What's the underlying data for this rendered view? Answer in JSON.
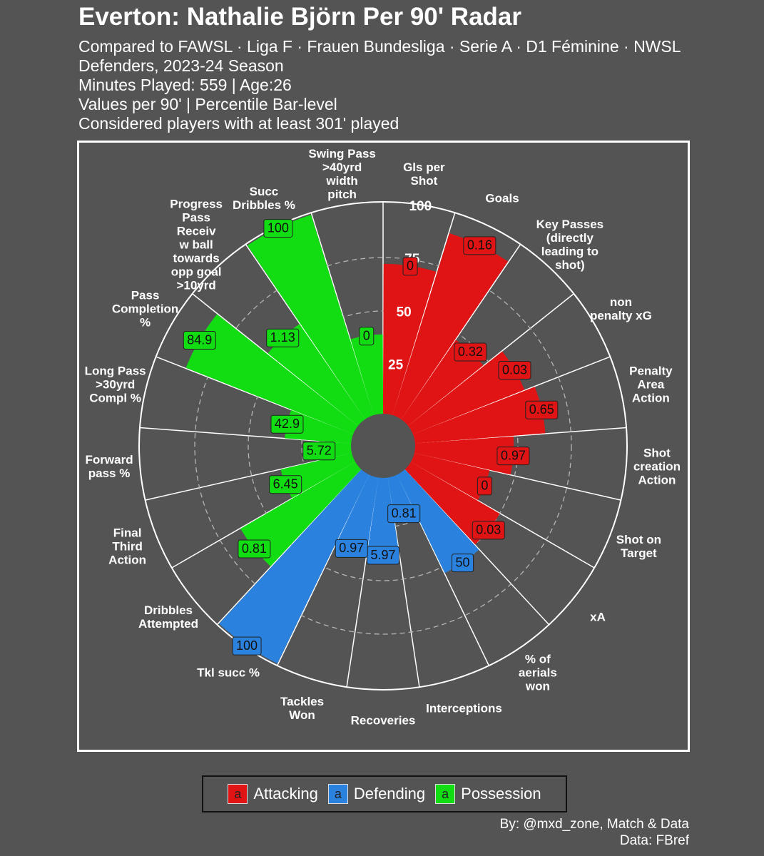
{
  "chart_data": {
    "type": "radar",
    "title": "Everton: Nathalie Björn Per 90' Radar",
    "subtitle": [
      "Compared to FAWSL · Liga F · Frauen Bundesliga · Serie A · D1 Féminine · NWSL",
      "Defenders, 2023-24 Season",
      "Minutes Played: 559 | Age:26",
      "Values per 90' | Percentile Bar-level",
      "Considered players with at least 301' played"
    ],
    "caption": [
      "By: @mxd_zone, Match & Data",
      "Data: FBref"
    ],
    "categories": [
      "Gls per\nShot",
      "Goals",
      "Key Passes\n(directly\nleading to\nshot)",
      "non\npenalty xG",
      "Penalty\nArea\nAction",
      "Shot\ncreation\nAction",
      "Shot on\nTarget",
      "xA",
      "% of\naerials\nwon",
      "Interceptions",
      "Recoveries",
      "Tackles\nWon",
      "Tkl succ %",
      "Dribbles\nAttempted",
      "Final\nThird\nAction",
      "Forward\npass %",
      "Long Pass\n>30yrd\nCompl %",
      "Pass\nCompletion\n%",
      "Progress\nPass\nReceiv\nw ball\ntowards\nopp goal\n>10yrd",
      "Succ\nDribbles %",
      "Swing Pass\n>40yrd\nwidth\npitch"
    ],
    "series": [
      {
        "name": "Attacking",
        "color": "#e01414",
        "values": [
          72,
          91,
          47,
          58,
          63,
          48,
          38,
          50,
          null,
          null,
          null,
          null,
          null,
          null,
          null,
          null,
          null,
          null,
          null,
          null,
          null
        ],
        "per90": [
          0,
          0.16,
          0.32,
          0.03,
          0.65,
          0.97,
          0,
          0.03,
          null,
          null,
          null,
          null,
          null,
          null,
          null,
          null,
          null,
          null,
          null,
          null,
          null
        ]
      },
      {
        "name": "Defending",
        "color": "#2a82de",
        "values": [
          null,
          null,
          null,
          null,
          null,
          null,
          null,
          null,
          53,
          20,
          38,
          37,
          100,
          null,
          null,
          null,
          null,
          null,
          null,
          null,
          null
        ],
        "per90": [
          null,
          null,
          null,
          null,
          null,
          null,
          null,
          null,
          50,
          0.81,
          5.97,
          0.97,
          100,
          null,
          null,
          null,
          null,
          null,
          null,
          null,
          null
        ]
      },
      {
        "name": "Possession",
        "color": "#12dc12",
        "values": [
          null,
          null,
          null,
          null,
          null,
          null,
          null,
          null,
          null,
          null,
          null,
          null,
          null,
          64,
          36,
          17,
          33,
          86,
          56,
          100,
          39
        ],
        "per90": [
          null,
          null,
          null,
          null,
          null,
          null,
          null,
          null,
          null,
          null,
          null,
          null,
          null,
          0.81,
          6.45,
          5.72,
          42.9,
          84.9,
          1.13,
          100,
          0
        ]
      }
    ],
    "ylim": [
      -13,
      100
    ],
    "yticks": [
      25,
      50,
      75,
      100
    ],
    "grid": true,
    "legend": "bottom",
    "legend_glyph": "a"
  }
}
